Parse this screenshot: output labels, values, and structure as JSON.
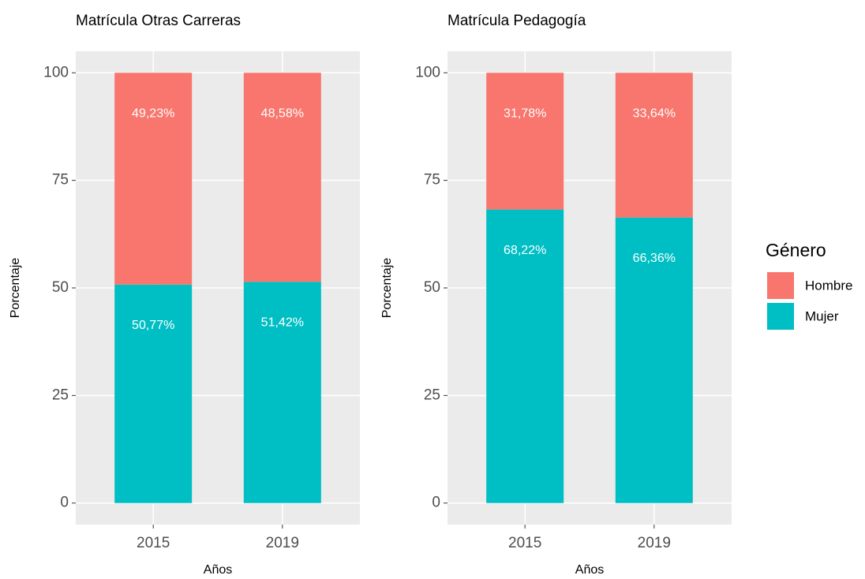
{
  "chart_data": [
    {
      "type": "bar",
      "stacked": true,
      "title": "Matrícula Otras Carreras",
      "x_label": "Años",
      "y_label": "Porcentaje",
      "categories": [
        "2015",
        "2019"
      ],
      "series": [
        {
          "color": "#00BFC4",
          "values": [
            50.77,
            51.42
          ],
          "value_labels": [
            "50,77%",
            "51,42%"
          ]
        },
        {
          "color": "#F8766D",
          "values": [
            49.23,
            48.58
          ],
          "value_labels": [
            "49,23%",
            "48,58%"
          ]
        }
      ],
      "ylim": [
        -5,
        105
      ],
      "yticks": [
        0,
        25,
        50,
        75,
        100
      ],
      "grid": true
    },
    {
      "type": "bar",
      "stacked": true,
      "title": "Matrícula Pedagogía",
      "x_label": "Años",
      "y_label": "Porcentaje",
      "categories": [
        "2015",
        "2019"
      ],
      "series": [
        {
          "color": "#00BFC4",
          "values": [
            68.22,
            66.36
          ],
          "value_labels": [
            "68,22%",
            "66,36%"
          ]
        },
        {
          "color": "#F8766D",
          "values": [
            31.78,
            33.64
          ],
          "value_labels": [
            "31,78%",
            "33,64%"
          ]
        }
      ],
      "ylim": [
        -5,
        105
      ],
      "yticks": [
        0,
        25,
        50,
        75,
        100
      ],
      "grid": true
    }
  ],
  "legend": {
    "title": "Género",
    "entries": [
      "Hombre",
      "Mujer"
    ]
  }
}
